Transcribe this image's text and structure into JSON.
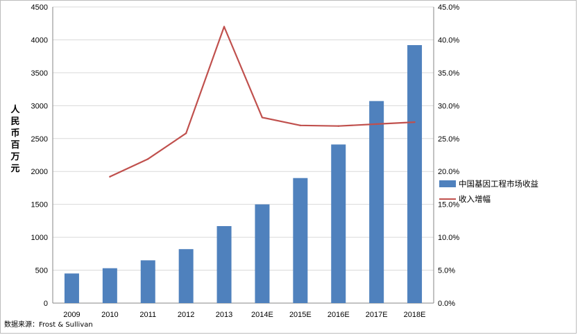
{
  "chart_data": {
    "type": "bar+line",
    "categories": [
      "2009",
      "2010",
      "2011",
      "2012",
      "2013",
      "2014E",
      "2015E",
      "2016E",
      "2017E",
      "2018E"
    ],
    "series": [
      {
        "name": "中国基因工程市场收益",
        "type": "bar",
        "axis": "left",
        "color": "#4F81BD",
        "values": [
          450,
          530,
          650,
          820,
          1170,
          1500,
          1900,
          2410,
          3070,
          3920
        ]
      },
      {
        "name": "收入增幅",
        "type": "line",
        "axis": "right",
        "color": "#C0504D",
        "values": [
          null,
          19.2,
          21.9,
          25.8,
          42.0,
          28.2,
          27.0,
          26.9,
          27.2,
          27.5
        ]
      }
    ],
    "ylabel": "人民币百万元",
    "ylim": [
      0,
      4500
    ],
    "yticks": [
      "0",
      "500",
      "1000",
      "1500",
      "2000",
      "2500",
      "3000",
      "3500",
      "4000",
      "4500"
    ],
    "y2lim": [
      0,
      45
    ],
    "y2ticks": [
      "0.0%",
      "5.0%",
      "10.0%",
      "15.0%",
      "20.0%",
      "25.0%",
      "30.0%",
      "35.0%",
      "40.0%",
      "45.0%"
    ],
    "grid": true,
    "legend_position": "right"
  },
  "source": "数据来源：Frost & Sullivan"
}
